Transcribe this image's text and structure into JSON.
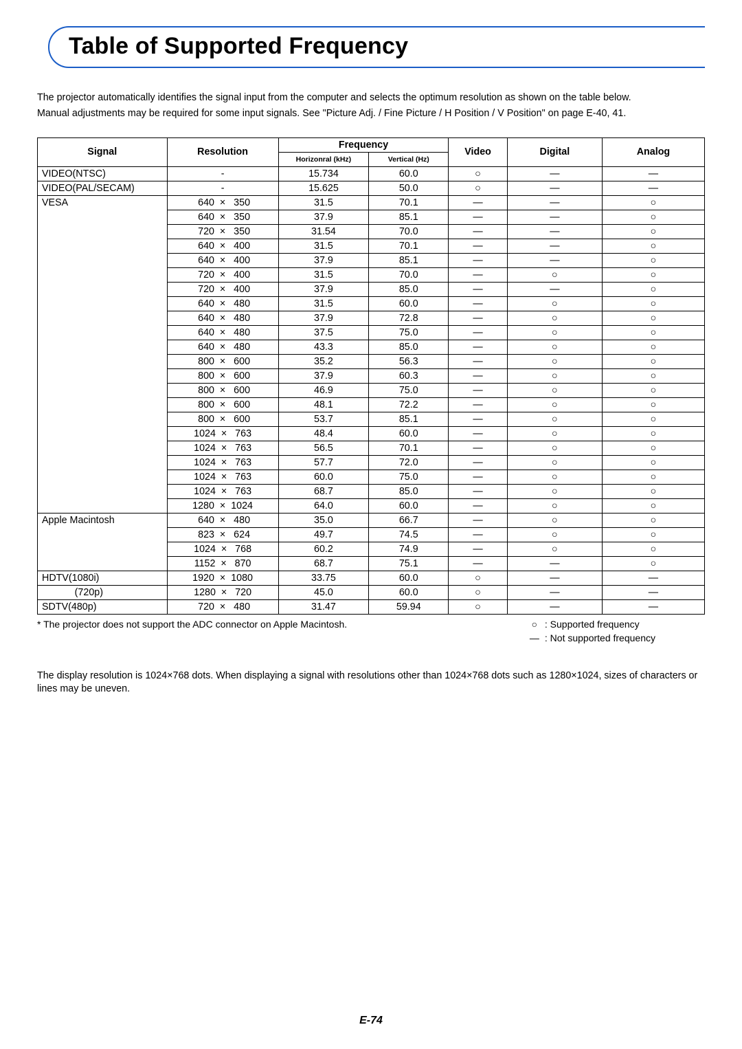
{
  "title": "Table of Supported Frequency",
  "intro1": "The projector automatically identifies the signal input from the computer and selects the optimum resolution as shown on the table below.",
  "intro2": "Manual adjustments may be required for some input signals. See \"Picture Adj. / Fine Picture / H Position / V Position\" on page E-40, 41.",
  "headers": {
    "signal": "Signal",
    "resolution": "Resolution",
    "frequency": "Frequency",
    "horiz": "Horizonral (kHz)",
    "vert": "Vertical (Hz)",
    "video": "Video",
    "digital": "Digital",
    "analog": "Analog"
  },
  "symbols": {
    "yes": "○",
    "no": "—",
    "times": "×"
  },
  "col_widths": {
    "signal": 172,
    "resolution": 148,
    "horiz": 120,
    "vert": 106,
    "video": 78,
    "digital": 126,
    "analog": 136
  },
  "groups": [
    {
      "signal": "VIDEO(NTSC)",
      "rows": [
        {
          "res": "-",
          "h": "15.734",
          "v": "60.0",
          "video": "○",
          "digital": "—",
          "analog": "—"
        }
      ]
    },
    {
      "signal": "VIDEO(PAL/SECAM)",
      "rows": [
        {
          "res": "-",
          "h": "15.625",
          "v": "50.0",
          "video": "○",
          "digital": "—",
          "analog": "—"
        }
      ]
    },
    {
      "signal": "VESA",
      "rows": [
        {
          "res_w": "640",
          "res_h": "350",
          "h": "31.5",
          "v": "70.1",
          "video": "—",
          "digital": "—",
          "analog": "○"
        },
        {
          "res_w": "640",
          "res_h": "350",
          "h": "37.9",
          "v": "85.1",
          "video": "—",
          "digital": "—",
          "analog": "○"
        },
        {
          "res_w": "720",
          "res_h": "350",
          "h": "31.54",
          "v": "70.0",
          "video": "—",
          "digital": "—",
          "analog": "○"
        },
        {
          "res_w": "640",
          "res_h": "400",
          "h": "31.5",
          "v": "70.1",
          "video": "—",
          "digital": "—",
          "analog": "○"
        },
        {
          "res_w": "640",
          "res_h": "400",
          "h": "37.9",
          "v": "85.1",
          "video": "—",
          "digital": "—",
          "analog": "○"
        },
        {
          "res_w": "720",
          "res_h": "400",
          "h": "31.5",
          "v": "70.0",
          "video": "—",
          "digital": "○",
          "analog": "○"
        },
        {
          "res_w": "720",
          "res_h": "400",
          "h": "37.9",
          "v": "85.0",
          "video": "—",
          "digital": "—",
          "analog": "○"
        },
        {
          "res_w": "640",
          "res_h": "480",
          "h": "31.5",
          "v": "60.0",
          "video": "—",
          "digital": "○",
          "analog": "○"
        },
        {
          "res_w": "640",
          "res_h": "480",
          "h": "37.9",
          "v": "72.8",
          "video": "—",
          "digital": "○",
          "analog": "○"
        },
        {
          "res_w": "640",
          "res_h": "480",
          "h": "37.5",
          "v": "75.0",
          "video": "—",
          "digital": "○",
          "analog": "○"
        },
        {
          "res_w": "640",
          "res_h": "480",
          "h": "43.3",
          "v": "85.0",
          "video": "—",
          "digital": "○",
          "analog": "○"
        },
        {
          "res_w": "800",
          "res_h": "600",
          "h": "35.2",
          "v": "56.3",
          "video": "—",
          "digital": "○",
          "analog": "○"
        },
        {
          "res_w": "800",
          "res_h": "600",
          "h": "37.9",
          "v": "60.3",
          "video": "—",
          "digital": "○",
          "analog": "○"
        },
        {
          "res_w": "800",
          "res_h": "600",
          "h": "46.9",
          "v": "75.0",
          "video": "—",
          "digital": "○",
          "analog": "○"
        },
        {
          "res_w": "800",
          "res_h": "600",
          "h": "48.1",
          "v": "72.2",
          "video": "—",
          "digital": "○",
          "analog": "○"
        },
        {
          "res_w": "800",
          "res_h": "600",
          "h": "53.7",
          "v": "85.1",
          "video": "—",
          "digital": "○",
          "analog": "○"
        },
        {
          "res_w": "1024",
          "res_h": "763",
          "h": "48.4",
          "v": "60.0",
          "video": "—",
          "digital": "○",
          "analog": "○"
        },
        {
          "res_w": "1024",
          "res_h": "763",
          "h": "56.5",
          "v": "70.1",
          "video": "—",
          "digital": "○",
          "analog": "○"
        },
        {
          "res_w": "1024",
          "res_h": "763",
          "h": "57.7",
          "v": "72.0",
          "video": "—",
          "digital": "○",
          "analog": "○"
        },
        {
          "res_w": "1024",
          "res_h": "763",
          "h": "60.0",
          "v": "75.0",
          "video": "—",
          "digital": "○",
          "analog": "○"
        },
        {
          "res_w": "1024",
          "res_h": "763",
          "h": "68.7",
          "v": "85.0",
          "video": "—",
          "digital": "○",
          "analog": "○"
        },
        {
          "res_w": "1280",
          "res_h": "1024",
          "h": "64.0",
          "v": "60.0",
          "video": "—",
          "digital": "○",
          "analog": "○"
        }
      ]
    },
    {
      "signal": "Apple Macintosh",
      "rows": [
        {
          "res_w": "640",
          "res_h": "480",
          "h": "35.0",
          "v": "66.7",
          "video": "—",
          "digital": "○",
          "analog": "○"
        },
        {
          "res_w": "823",
          "res_h": "624",
          "h": "49.7",
          "v": "74.5",
          "video": "—",
          "digital": "○",
          "analog": "○"
        },
        {
          "res_w": "1024",
          "res_h": "768",
          "h": "60.2",
          "v": "74.9",
          "video": "—",
          "digital": "○",
          "analog": "○"
        },
        {
          "res_w": "1152",
          "res_h": "870",
          "h": "68.7",
          "v": "75.1",
          "video": "—",
          "digital": "—",
          "analog": "○"
        }
      ]
    },
    {
      "signal": "HDTV(1080i)",
      "rows": [
        {
          "res_w": "1920",
          "res_h": "1080",
          "h": "33.75",
          "v": "60.0",
          "video": "○",
          "digital": "—",
          "analog": "—"
        }
      ]
    },
    {
      "signal": "            (720p)",
      "rows": [
        {
          "res_w": "1280",
          "res_h": "720",
          "h": "45.0",
          "v": "60.0",
          "video": "○",
          "digital": "—",
          "analog": "—"
        }
      ]
    },
    {
      "signal": "SDTV(480p)",
      "rows": [
        {
          "res_w": "720",
          "res_h": "480",
          "h": "31.47",
          "v": "59.94",
          "video": "○",
          "digital": "—",
          "analog": "—"
        }
      ]
    }
  ],
  "footnote": "*  The projector does not support the ADC connector on Apple Macintosh.",
  "legend": {
    "supported": ": Supported frequency",
    "not_supported": ": Not supported frequency"
  },
  "aftertext": "The display resolution is 1024×768 dots. When displaying a signal with resolutions other than 1024×768 dots such as 1280×1024, sizes of characters or lines may be uneven.",
  "pagenum": "E-74"
}
